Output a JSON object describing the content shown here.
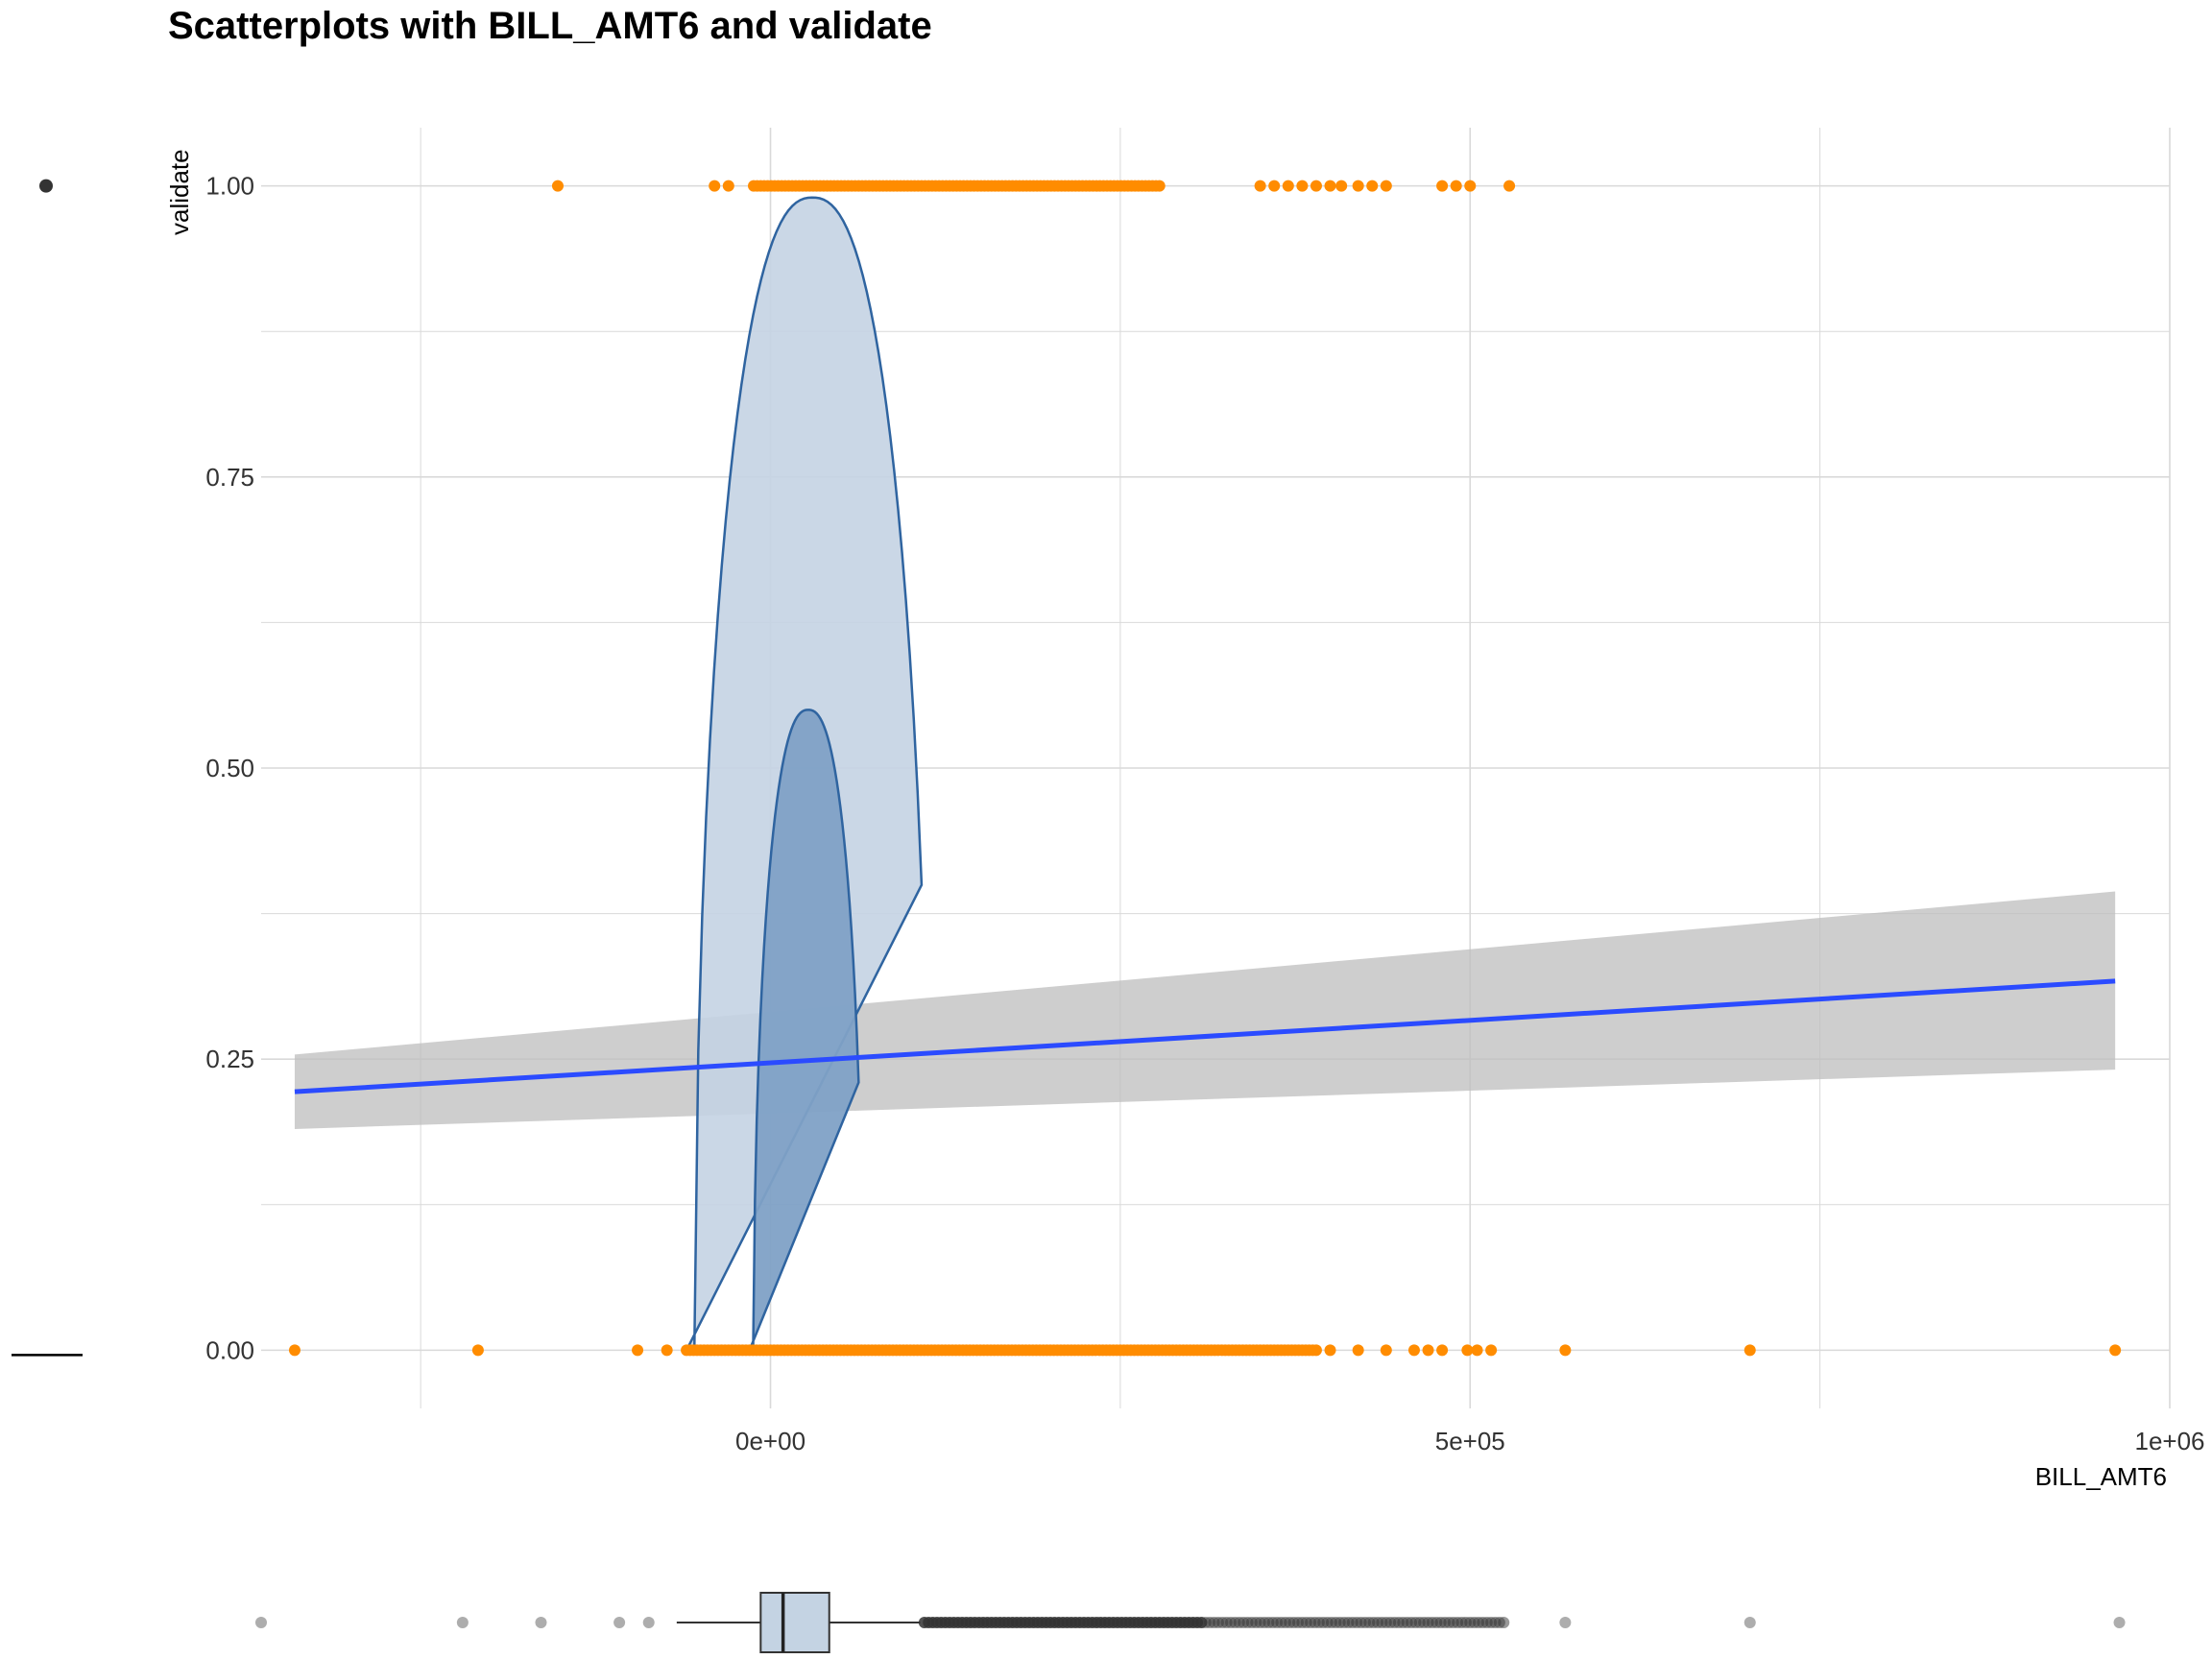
{
  "chart_data": {
    "type": "scatter",
    "title": "Scatterplots with BILL_AMT6 and validate",
    "xlabel": "BILL_AMT6",
    "ylabel": "validate",
    "xlim": [
      -364000,
      1000000
    ],
    "ylim": [
      -0.05,
      1.05
    ],
    "x_ticks": [
      {
        "value": 0,
        "label": "0e+00"
      },
      {
        "value": 500000,
        "label": "5e+05"
      },
      {
        "value": 1000000,
        "label": "1e+06"
      }
    ],
    "y_ticks": [
      {
        "value": 0,
        "label": "0.00"
      },
      {
        "value": 0.25,
        "label": "0.25"
      },
      {
        "value": 0.5,
        "label": "0.50"
      },
      {
        "value": 0.75,
        "label": "0.75"
      },
      {
        "value": 1,
        "label": "1.00"
      }
    ],
    "grid": true,
    "colors": {
      "points": "#ff8c00",
      "fit_line": "#2b4bff",
      "confidence_band": "#bdbdbd",
      "contour_outer": "#c4d3e3",
      "contour_inner": "#7fa1c6",
      "contour_stroke": "#2f64a0",
      "boxplot_fill": "#c4d3e3",
      "grid": "#d9d9d9"
    },
    "points_y1": {
      "x_outliers": [
        -152000,
        -40000,
        -30000,
        350000,
        360000,
        370000,
        380000,
        390000,
        400000,
        408000,
        420000,
        430000,
        440000,
        480000,
        490000,
        500000,
        528000
      ],
      "dense_range": [
        -12000,
        280000
      ]
    },
    "points_y0": {
      "x_outliers": [
        -340000,
        -209000,
        -95000,
        -74000,
        400000,
        420000,
        440000,
        460000,
        470000,
        480000,
        498000,
        505000,
        515000,
        568000,
        700000,
        961000
      ],
      "dense_range": [
        -60000,
        390000
      ]
    },
    "fit": {
      "x": [
        -340000,
        961000
      ],
      "y": [
        0.222,
        0.317
      ],
      "lower": [
        0.19,
        0.241
      ],
      "upper": [
        0.254,
        0.394
      ]
    },
    "density_contours": [
      {
        "level": "outer",
        "x_center": 30000,
        "x_min": -60000,
        "x_max": 108000,
        "y_peak": 0.99
      },
      {
        "level": "inner",
        "x_center": 27000,
        "x_min": -15000,
        "x_max": 63000,
        "y_peak": 0.55
      }
    ],
    "boxplot": {
      "q1": -7000,
      "median": 9000,
      "q3": 42000,
      "whisker_low": -67000,
      "whisker_high": 107000,
      "outliers": [
        -364000,
        -220000,
        -164000,
        -108000,
        -87000,
        568000,
        700000,
        964000
      ],
      "outlier_dense_range": [
        110000,
        525000
      ]
    },
    "legend": {
      "point_symbol": "dot",
      "line_symbol": "line"
    }
  }
}
